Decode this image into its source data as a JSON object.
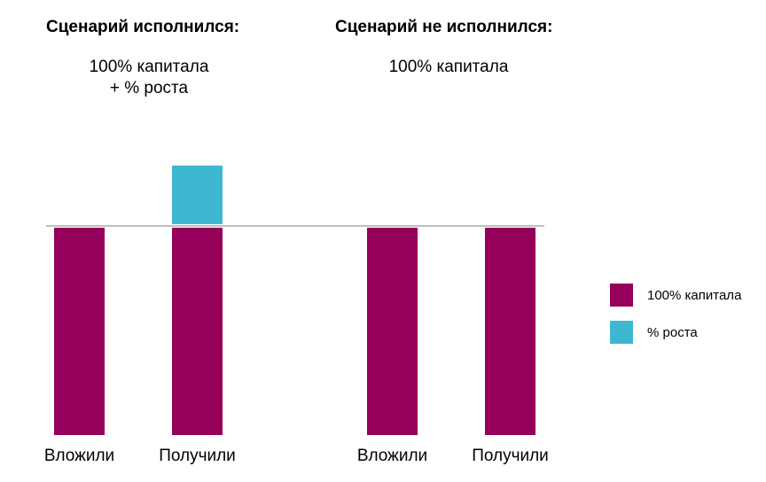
{
  "panels": [
    {
      "title": "Сценарий исполнился:",
      "subtitle_lines": [
        "100% капитала",
        "+ % роста"
      ]
    },
    {
      "title": "Сценарий не исполнился:",
      "subtitle_lines": [
        "100% капитала"
      ]
    }
  ],
  "colors": {
    "capital": "#95005B",
    "growth": "#3EB8D0",
    "baseline": "#BFBFBF"
  },
  "chart_data": [
    {
      "type": "bar",
      "stacked": true,
      "categories": [
        "Вложили",
        "Получили"
      ],
      "series": [
        {
          "name": "100% капитала",
          "values": [
            100,
            100
          ]
        },
        {
          "name": "% роста",
          "values": [
            0,
            30
          ]
        }
      ],
      "ylim": [
        0,
        130
      ],
      "legend": "right"
    },
    {
      "type": "bar",
      "stacked": true,
      "categories": [
        "Вложили",
        "Получили"
      ],
      "series": [
        {
          "name": "100% капитала",
          "values": [
            100,
            100
          ]
        },
        {
          "name": "% роста",
          "values": [
            0,
            0
          ]
        }
      ],
      "ylim": [
        0,
        130
      ],
      "legend": "right"
    }
  ],
  "legend": [
    {
      "label": "100% капитала",
      "color_key": "capital"
    },
    {
      "label": "% роста",
      "color_key": "growth"
    }
  ]
}
